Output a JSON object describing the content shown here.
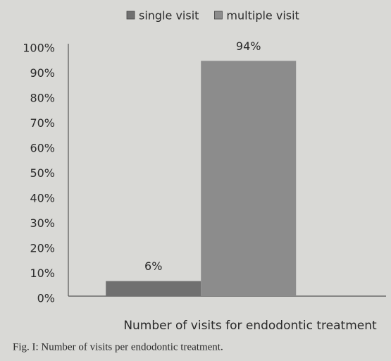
{
  "chart_data": {
    "type": "bar",
    "categories": [
      null
    ],
    "series": [
      {
        "name": "single visit",
        "color": "#707070",
        "values": [
          6
        ],
        "value_labels": [
          "6%"
        ]
      },
      {
        "name": "multiple visit",
        "color": "#8c8c8c",
        "values": [
          94
        ],
        "value_labels": [
          "94%"
        ]
      }
    ],
    "x_label": "Number of visits for endodontic treatment",
    "caption": "Fig. I: Number of visits per endodontic treatment.",
    "ylim": [
      0,
      100
    ],
    "yticks": [
      {
        "value": 0,
        "label": "0%"
      },
      {
        "value": 10,
        "label": "10%"
      },
      {
        "value": 20,
        "label": "20%"
      },
      {
        "value": 30,
        "label": "30%"
      },
      {
        "value": 40,
        "label": "40%"
      },
      {
        "value": 50,
        "label": "50%"
      },
      {
        "value": 60,
        "label": "60%"
      },
      {
        "value": 70,
        "label": "70%"
      },
      {
        "value": 80,
        "label": "80%"
      },
      {
        "value": 90,
        "label": "90%"
      },
      {
        "value": 100,
        "label": "100%"
      }
    ],
    "grid": false,
    "legend": "top"
  }
}
